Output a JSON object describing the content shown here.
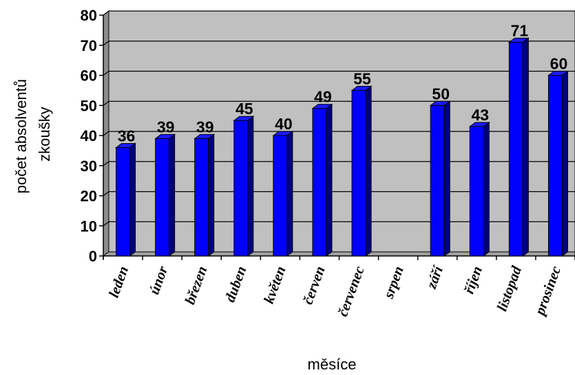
{
  "chart_data": {
    "type": "bar",
    "categories": [
      "leden",
      "únor",
      "březen",
      "duben",
      "květen",
      "červen",
      "červenec",
      "srpen",
      "září",
      "říjen",
      "listopad",
      "prosinec"
    ],
    "values": [
      36,
      39,
      39,
      45,
      40,
      49,
      55,
      null,
      50,
      43,
      71,
      60
    ],
    "data_labels": [
      "36",
      "39",
      "39",
      "45",
      "40",
      "49",
      "55",
      "",
      "50",
      "43",
      "71",
      "60"
    ],
    "yticks": [
      "0",
      "10",
      "20",
      "30",
      "40",
      "50",
      "60",
      "70",
      "80"
    ],
    "ylim": [
      0,
      80
    ],
    "ylabel_lines": [
      "počet absolventů",
      "zkoušky"
    ],
    "xlabel": "měsíce",
    "grid": true,
    "legend": "none",
    "style": "3d-column",
    "colors": {
      "bar_front": "#0000ff",
      "bar_top": "#1a1aff",
      "bar_side": "#000080",
      "plot_back": "#c0c0c0",
      "plot_floor": "#a0a0a0",
      "grid": "#000000"
    }
  }
}
